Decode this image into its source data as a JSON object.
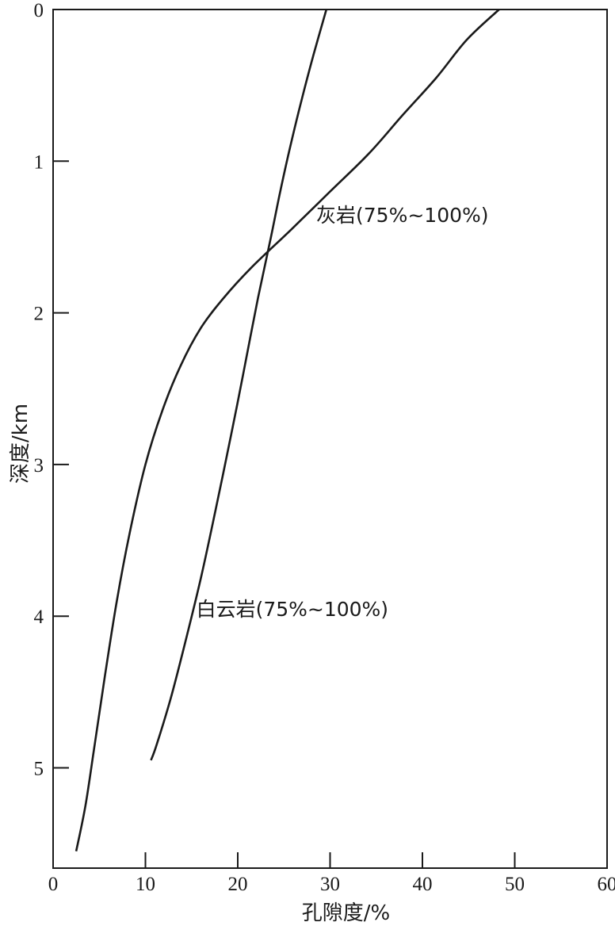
{
  "chart_data": {
    "type": "line",
    "xlabel": "孔隙度/%",
    "ylabel": "深度/km",
    "xlim": [
      0,
      60
    ],
    "ylim": [
      0,
      5.75
    ],
    "y_inverted": true,
    "x_axis_position": "bottom",
    "xticks": [
      0,
      10,
      20,
      30,
      40,
      50,
      60
    ],
    "yticks": [
      0,
      1,
      2,
      3,
      4,
      5
    ],
    "grid": false,
    "series": [
      {
        "name": "灰岩(75%~100%)",
        "points": [
          [
            48.3,
            0.0
          ],
          [
            44.8,
            0.2
          ],
          [
            41.5,
            0.45
          ],
          [
            37.8,
            0.7
          ],
          [
            34.2,
            0.95
          ],
          [
            30.0,
            1.2
          ],
          [
            25.8,
            1.45
          ],
          [
            21.5,
            1.7
          ],
          [
            18.5,
            1.9
          ],
          [
            16.0,
            2.1
          ],
          [
            13.8,
            2.35
          ],
          [
            11.8,
            2.65
          ],
          [
            10.0,
            3.0
          ],
          [
            8.3,
            3.45
          ],
          [
            6.9,
            3.9
          ],
          [
            5.6,
            4.4
          ],
          [
            4.5,
            4.85
          ],
          [
            3.5,
            5.25
          ],
          [
            2.5,
            5.55
          ]
        ]
      },
      {
        "name": "白云岩(75%~100%)",
        "points": [
          [
            29.6,
            0.0
          ],
          [
            28.2,
            0.3
          ],
          [
            26.9,
            0.6
          ],
          [
            25.7,
            0.9
          ],
          [
            24.6,
            1.2
          ],
          [
            23.6,
            1.5
          ],
          [
            22.2,
            1.9
          ],
          [
            20.6,
            2.4
          ],
          [
            19.3,
            2.8
          ],
          [
            17.6,
            3.3
          ],
          [
            16.0,
            3.75
          ],
          [
            14.2,
            4.2
          ],
          [
            12.7,
            4.55
          ],
          [
            11.2,
            4.85
          ],
          [
            10.6,
            4.95
          ]
        ]
      }
    ],
    "annotations": [
      {
        "text": "灰岩(75%~100%)",
        "x": 28.5,
        "y": 1.4
      },
      {
        "text": "白云岩(75%~100%)",
        "x": 15.5,
        "y": 4.0
      }
    ]
  }
}
